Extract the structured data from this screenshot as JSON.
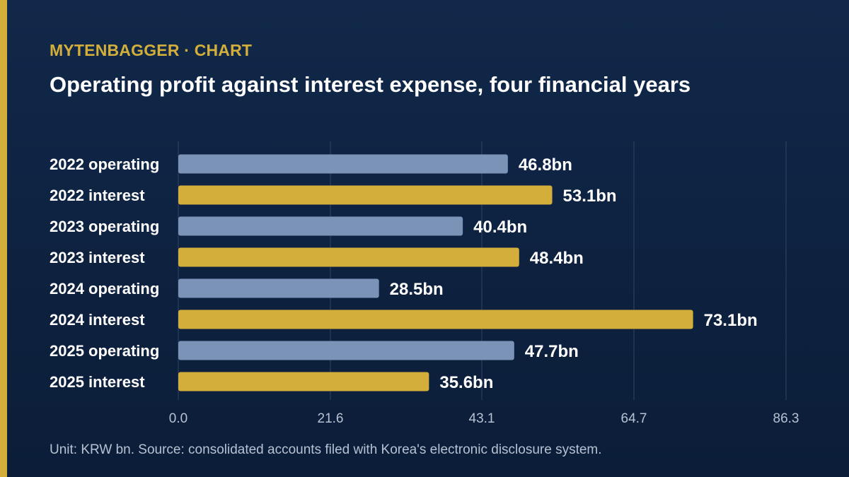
{
  "header": {
    "kicker": "MYTENBAGGER · CHART",
    "title": "Operating profit against interest expense, four financial years"
  },
  "footnote": "Unit: KRW bn. Source: consolidated accounts filed with Korea's electronic disclosure system.",
  "colors": {
    "background": "#0f2444",
    "accent": "#d4ae3a",
    "operating": "#7c93b8",
    "interest": "#d4ae3a",
    "text": "#ffffff",
    "axis_text": "#b7c2d2",
    "grid": "#2f4564"
  },
  "chart_data": {
    "type": "bar",
    "orientation": "horizontal",
    "categories": [
      "2022 operating",
      "2022 interest",
      "2023 operating",
      "2023 interest",
      "2024 operating",
      "2024 interest",
      "2025 operating",
      "2025 interest"
    ],
    "values": [
      46.8,
      53.1,
      40.4,
      48.4,
      28.5,
      73.1,
      47.7,
      35.6
    ],
    "value_labels": [
      "46.8bn",
      "53.1bn",
      "40.4bn",
      "48.4bn",
      "28.5bn",
      "73.1bn",
      "47.7bn",
      "35.6bn"
    ],
    "kinds": [
      "operating",
      "interest",
      "operating",
      "interest",
      "operating",
      "interest",
      "operating",
      "interest"
    ],
    "x_ticks": [
      "0.0",
      "21.6",
      "43.1",
      "64.7",
      "86.3"
    ],
    "xlim": [
      0,
      86.3
    ],
    "grid": true
  }
}
